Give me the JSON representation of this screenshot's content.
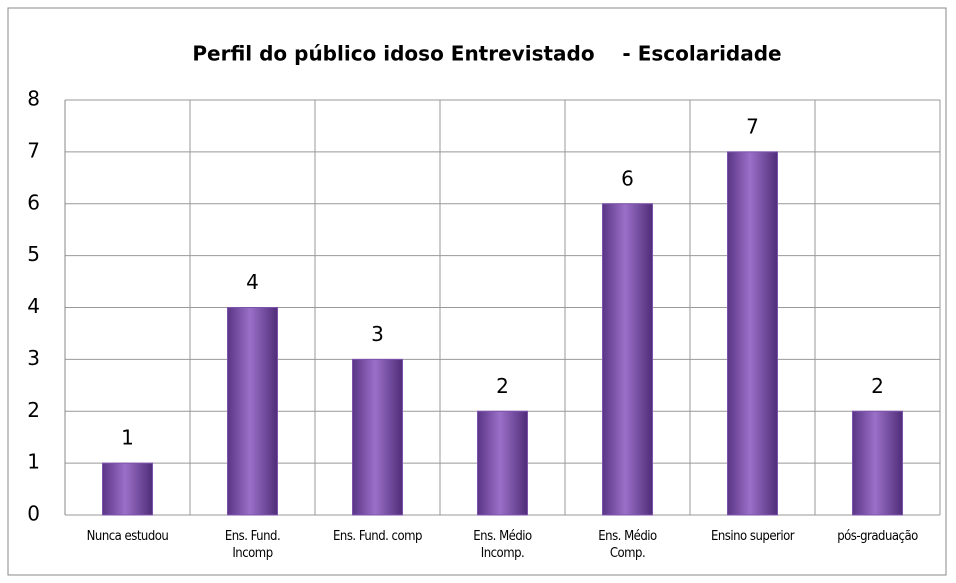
{
  "chart_data": {
    "type": "bar",
    "title": "Perfil do público idoso Entrevistado    - Escolaridade",
    "categories": [
      "Nunca estudou",
      "Ens. Fund.\nIncomp",
      "Ens. Fund. comp",
      "Ens. Médio\nIncomp.",
      "Ens. Médio\nComp.",
      "Ensino superior",
      "pós-graduação"
    ],
    "values": [
      1,
      4,
      3,
      2,
      6,
      7,
      2
    ],
    "color": "#7d52ad",
    "ylim": [
      0,
      8
    ],
    "yticks": [
      0,
      1,
      2,
      3,
      4,
      5,
      6,
      7,
      8
    ],
    "grid": true
  }
}
